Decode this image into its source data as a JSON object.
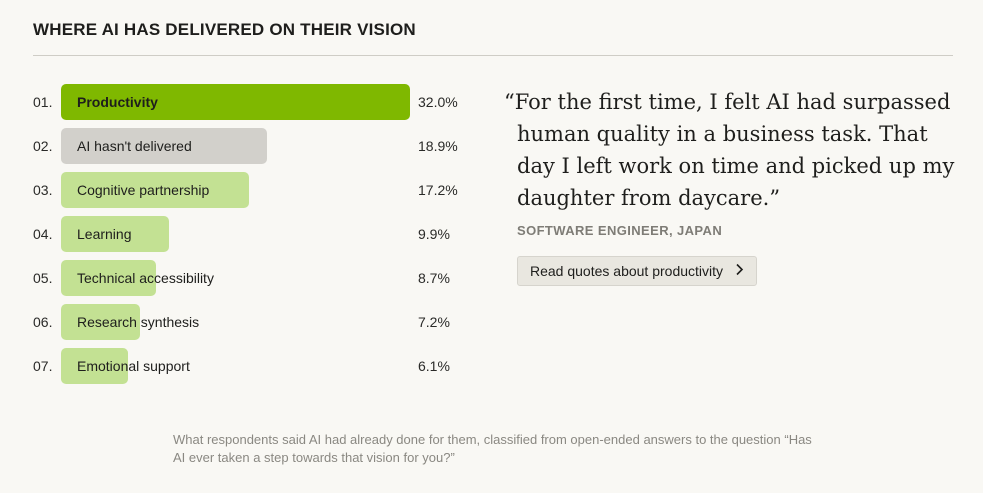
{
  "header": {
    "title": "WHERE AI HAS DELIVERED ON THEIR VISION"
  },
  "chart_data": {
    "type": "bar",
    "orientation": "horizontal",
    "title": "WHERE AI HAS DELIVERED ON THEIR VISION",
    "categories": [
      "Productivity",
      "AI hasn't delivered",
      "Cognitive partnership",
      "Learning",
      "Technical accessibility",
      "Research synthesis",
      "Emotional support"
    ],
    "ranks": [
      "01.",
      "02.",
      "03.",
      "04.",
      "05.",
      "06.",
      "07."
    ],
    "values": [
      32.0,
      18.9,
      17.2,
      9.9,
      8.7,
      7.2,
      6.1
    ],
    "value_labels": [
      "32.0%",
      "18.9%",
      "17.2%",
      "9.9%",
      "8.7%",
      "7.2%",
      "6.1%"
    ],
    "xlim": [
      0,
      32.0
    ],
    "grid": false,
    "colors": {
      "highlight": "#7fb800",
      "neutral": "#d2d0cb",
      "default": "#c3e193"
    },
    "bar_color_roles": [
      "highlight",
      "neutral",
      "default",
      "default",
      "default",
      "default",
      "default"
    ]
  },
  "quote": {
    "text": "“For the first time, I felt AI had surpassed human quality in a business task. That day I left work on time and picked up my daughter from daycare.”",
    "attribution": "SOFTWARE ENGINEER, JAPAN",
    "cta_label": "Read quotes about productivity",
    "cta_icon": "chevron-right-icon"
  },
  "footnote": "What respondents said AI had already done for them, classified from open-ended answers to the question “Has AI ever taken a step towards that vision for you?”"
}
